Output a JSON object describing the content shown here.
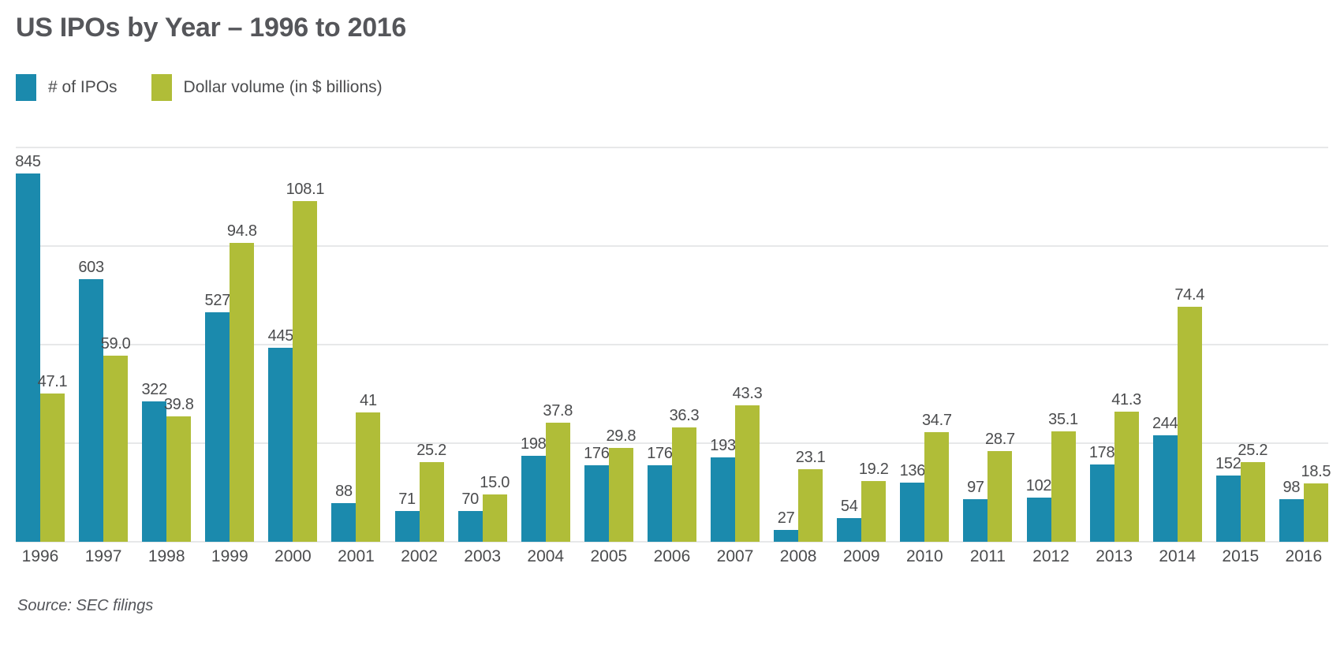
{
  "page": {
    "title": "US IPOs by Year – 1996 to 2016",
    "source": "Source: SEC filings"
  },
  "legend": {
    "items": [
      {
        "label": "# of IPOs",
        "color": "#1b8aad"
      },
      {
        "label": "Dollar volume (in $ billions)",
        "color": "#b0bd38"
      }
    ]
  },
  "chart_data": {
    "type": "bar",
    "title": "US IPOs by Year – 1996 to 2016",
    "categories": [
      "1996",
      "1997",
      "1998",
      "1999",
      "2000",
      "2001",
      "2002",
      "2003",
      "2004",
      "2005",
      "2006",
      "2007",
      "2008",
      "2009",
      "2010",
      "2011",
      "2012",
      "2013",
      "2014",
      "2015",
      "2016"
    ],
    "series": [
      {
        "name": "# of IPOs",
        "color": "#1b8aad",
        "axis": "left",
        "values": [
          845,
          603,
          322,
          527,
          445,
          88,
          71,
          70,
          198,
          176,
          176,
          193,
          27,
          54,
          136,
          97,
          102,
          178,
          244,
          152,
          98
        ],
        "labels": [
          "845",
          "603",
          "322",
          "527",
          "445",
          "88",
          "71",
          "70",
          "198",
          "176",
          "176",
          "193",
          "27",
          "54",
          "136",
          "97",
          "102",
          "178",
          "244",
          "152",
          "98"
        ]
      },
      {
        "name": "Dollar volume (in $ billions)",
        "color": "#b0bd38",
        "axis": "right",
        "values": [
          47.1,
          59.0,
          39.8,
          94.8,
          108.1,
          41,
          25.2,
          15.0,
          37.8,
          29.8,
          36.3,
          43.3,
          23.1,
          19.2,
          34.7,
          28.7,
          35.1,
          41.3,
          74.4,
          25.2,
          18.5
        ],
        "labels": [
          "47.1",
          "59.0",
          "39.8",
          "94.8",
          "108.1",
          "41",
          "25.2",
          "15.0",
          "37.8",
          "29.8",
          "36.3",
          "43.3",
          "23.1",
          "19.2",
          "34.7",
          "28.7",
          "35.1",
          "41.3",
          "74.4",
          "25.2",
          "18.5"
        ]
      }
    ],
    "ylim_left": [
      0,
      905
    ],
    "ylim_right": [
      0,
      125
    ],
    "gridline_count": 5,
    "grid": "horizontal",
    "legend_position": "top-left",
    "value_labels": "above-bars",
    "xlabel": "",
    "ylabel": "",
    "source": "Source: SEC filings"
  }
}
